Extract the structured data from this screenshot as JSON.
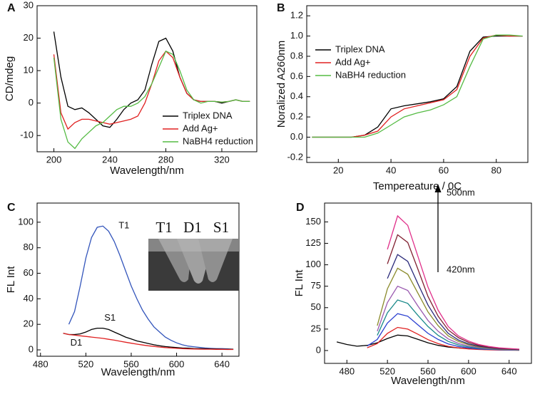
{
  "chart_data": [
    {
      "type": "line",
      "panel_label": "A",
      "xlabel": "Wavelength/nm",
      "ylabel": "CD/mdeg",
      "xlim": [
        188,
        345
      ],
      "ylim": [
        -15,
        30
      ],
      "xticks": [
        200,
        240,
        280,
        320
      ],
      "yticks": [
        -10,
        0,
        10,
        20,
        30
      ],
      "legend": "lower right",
      "x": [
        200,
        205,
        210,
        215,
        220,
        225,
        230,
        235,
        240,
        245,
        250,
        255,
        260,
        265,
        270,
        275,
        280,
        285,
        290,
        295,
        300,
        305,
        310,
        315,
        320,
        325,
        330,
        335,
        340
      ],
      "series": [
        {
          "name": "Triplex DNA",
          "color": "#000000",
          "values": [
            22,
            8,
            -1,
            -2,
            -1.5,
            -3,
            -5,
            -7,
            -7.5,
            -5,
            -2,
            0,
            1,
            4,
            12,
            19,
            20,
            16,
            8,
            3,
            1,
            0.5,
            0.5,
            0.5,
            0,
            0.5,
            1,
            0.5,
            0.5
          ]
        },
        {
          "name": "Add Ag+",
          "color": "#e02020",
          "values": [
            15,
            -3,
            -8,
            -6,
            -5,
            -5,
            -5.5,
            -6,
            -6.5,
            -6,
            -5.5,
            -5,
            -4,
            0,
            6,
            13,
            16,
            14,
            8,
            3,
            1,
            0.5,
            0.5,
            0.5,
            0.3,
            0.5,
            1,
            0.5,
            0.5
          ]
        },
        {
          "name": "NaBH4 reduction",
          "color": "#55bb44",
          "values": [
            14,
            -5,
            -12,
            -14,
            -11,
            -9,
            -7,
            -6,
            -4,
            -2,
            -1,
            -1,
            0,
            2,
            6,
            11,
            16,
            15,
            10,
            4,
            1,
            0,
            0.5,
            0.5,
            0.3,
            0.5,
            1,
            0.5,
            0.5
          ]
        }
      ]
    },
    {
      "type": "line",
      "panel_label": "B",
      "xlabel": "Tempereature / 0C",
      "ylabel": "Noralized A260nm",
      "xlim": [
        8,
        92
      ],
      "ylim": [
        -0.25,
        1.3
      ],
      "xticks": [
        20,
        40,
        60,
        80
      ],
      "yticks": [
        -0.2,
        {
          "value": 0,
          "label": "0.0"
        },
        0.2,
        0.4,
        0.6,
        0.8,
        {
          "value": 1,
          "label": "1.0"
        },
        1.2
      ],
      "legend": "upper left",
      "x": [
        10,
        15,
        20,
        25,
        30,
        35,
        40,
        45,
        50,
        55,
        60,
        65,
        70,
        75,
        80,
        85,
        90
      ],
      "series": [
        {
          "name": "Triplex DNA",
          "color": "#000000",
          "values": [
            0,
            0,
            0,
            0,
            0.02,
            0.1,
            0.28,
            0.31,
            0.33,
            0.35,
            0.38,
            0.5,
            0.85,
            0.99,
            1,
            1,
            1
          ]
        },
        {
          "name": "Add Ag+",
          "color": "#e02020",
          "values": [
            0,
            0,
            0,
            0,
            0.02,
            0.06,
            0.2,
            0.28,
            0.31,
            0.34,
            0.37,
            0.47,
            0.8,
            0.98,
            1.01,
            1,
            1
          ]
        },
        {
          "name": "NaBH4 reduction",
          "color": "#55bb44",
          "values": [
            0,
            0,
            0,
            0,
            0,
            0.04,
            0.12,
            0.2,
            0.24,
            0.27,
            0.32,
            0.4,
            0.7,
            0.97,
            1.01,
            1.01,
            1
          ]
        }
      ]
    },
    {
      "type": "line",
      "panel_label": "C",
      "xlabel": "Wavelength/nm",
      "ylabel": "FL Int",
      "xlim": [
        477,
        655
      ],
      "ylim": [
        -5,
        115
      ],
      "xticks": [
        480,
        520,
        560,
        600,
        640
      ],
      "yticks": [
        0,
        20,
        40,
        60,
        80,
        100
      ],
      "inset_labels": [
        "T1",
        "D1",
        "S1"
      ],
      "x": [
        500,
        505,
        510,
        515,
        520,
        525,
        530,
        535,
        540,
        545,
        550,
        555,
        560,
        565,
        570,
        575,
        580,
        585,
        590,
        595,
        600,
        605,
        610,
        615,
        620,
        625,
        630,
        635,
        640,
        645,
        650
      ],
      "series": [
        {
          "name": "T1",
          "color": "#3355bb",
          "values": [
            null,
            20,
            30,
            50,
            72,
            88,
            96,
            97,
            93,
            85,
            74,
            62,
            50,
            40,
            31,
            24,
            18,
            14,
            10,
            7.5,
            5.5,
            4,
            3,
            2.5,
            2,
            1.5,
            1.2,
            1,
            1,
            0.8,
            0.5
          ]
        },
        {
          "name": "S1",
          "color": "#000000",
          "values": [
            13,
            12,
            12,
            12.5,
            14,
            16,
            17,
            17,
            16,
            14,
            12,
            10,
            8.5,
            7,
            6,
            5,
            4,
            3.2,
            2.6,
            2.2,
            1.8,
            1.5,
            1.3,
            1.1,
            1,
            0.9,
            0.8,
            0.7,
            0.6,
            0.5,
            0.5
          ]
        },
        {
          "name": "D1",
          "color": "#e02020",
          "values": [
            13,
            12,
            11.5,
            11,
            10.5,
            10,
            9.5,
            9,
            8.3,
            7.6,
            6.8,
            6,
            5.2,
            4.5,
            3.8,
            3.2,
            2.7,
            2.2,
            1.8,
            1.5,
            1.2,
            1,
            0.8,
            0.7,
            0.6,
            0.5,
            0.5,
            0.4,
            0.4,
            0.3,
            0.3
          ]
        }
      ]
    },
    {
      "type": "line",
      "panel_label": "D",
      "xlabel": "Wavelength/nm",
      "ylabel": "FL Int",
      "xlim": [
        458,
        662
      ],
      "ylim": [
        -15,
        172
      ],
      "xticks": [
        480,
        520,
        560,
        600,
        640
      ],
      "yticks": [
        0,
        25,
        50,
        75,
        100,
        125,
        150
      ],
      "annotations": [
        "500nm",
        "420nm"
      ],
      "x": [
        470,
        480,
        490,
        500,
        510,
        520,
        530,
        540,
        550,
        560,
        570,
        580,
        590,
        600,
        610,
        620,
        630,
        640,
        650
      ],
      "series": [
        {
          "color": "#000000",
          "values": [
            10,
            7,
            5,
            6,
            9,
            14,
            18,
            17,
            13,
            9,
            6,
            4,
            3,
            2,
            1.5,
            1,
            1,
            0.5,
            0.5
          ]
        },
        {
          "color": "#e02020",
          "values": [
            null,
            null,
            null,
            3.2,
            8.1,
            20,
            27,
            25,
            19,
            12.7,
            8.1,
            4.9,
            3,
            1.9,
            1.2,
            0.8,
            0.5,
            0.4,
            0.3
          ]
        },
        {
          "color": "#2a3fd0",
          "values": [
            null,
            null,
            null,
            5.2,
            12.9,
            32,
            43,
            40,
            30,
            20,
            12.9,
            7.7,
            4.7,
            3,
            1.9,
            1.3,
            0.9,
            0.6,
            0.4
          ]
        },
        {
          "color": "#1a8a8a",
          "values": [
            null,
            null,
            null,
            null,
            17.7,
            44,
            59,
            55,
            41,
            28,
            17.7,
            10.6,
            6.5,
            4.1,
            2.7,
            1.8,
            1.2,
            0.9,
            0.6
          ]
        },
        {
          "color": "#9a5ab0",
          "values": [
            null,
            null,
            null,
            null,
            22.5,
            56,
            75,
            70,
            52,
            35,
            22.5,
            13.5,
            8.3,
            5.3,
            3.4,
            2.3,
            1.5,
            1.1,
            0.8
          ]
        },
        {
          "color": "#8a8a2a",
          "values": [
            null,
            null,
            null,
            null,
            29,
            72,
            96,
            89,
            67,
            45,
            29,
            17,
            10.6,
            6.7,
            4.3,
            2.9,
            1.9,
            1.4,
            1
          ]
        },
        {
          "color": "#2a2a7a",
          "values": [
            null,
            null,
            null,
            null,
            null,
            84,
            112,
            104,
            78,
            53,
            34,
            20,
            12.3,
            7.8,
            5,
            3.4,
            2.2,
            1.7,
            1.1
          ]
        },
        {
          "color": "#802030",
          "values": [
            null,
            null,
            null,
            null,
            null,
            101,
            135,
            126,
            95,
            63,
            40,
            24,
            15,
            9.5,
            6,
            4,
            2.7,
            2,
            1.4
          ]
        },
        {
          "color": "#e0308a",
          "values": [
            null,
            null,
            null,
            null,
            null,
            118,
            157,
            146,
            110,
            74,
            47,
            28,
            17,
            11,
            7,
            4.7,
            3.1,
            2.4,
            1.6
          ]
        }
      ]
    }
  ]
}
